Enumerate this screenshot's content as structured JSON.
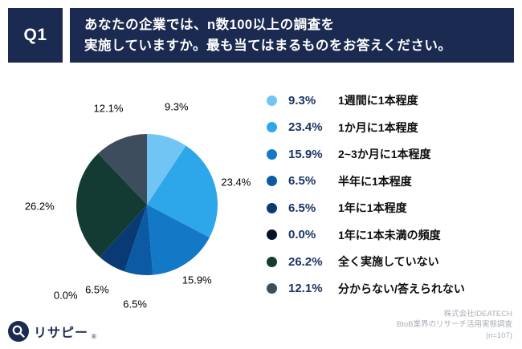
{
  "theme": {
    "navy": "#1B2A50",
    "percent": "#1C3564",
    "muted": "#A9AFB6"
  },
  "header": {
    "q_label": "Q1",
    "title_line1": "あなたの企業では、n数100以上の調査を",
    "title_line2": "実施していますか。最も当てはまるものをお答えください。"
  },
  "chart_data": {
    "type": "pie",
    "title": "Q1 あなたの企業では、n数100以上の調査を実施していますか。最も当てはまるものをお答えください。",
    "categories": [
      "1週間に1本程度",
      "1か月に1本程度",
      "2~3か月に1本程度",
      "半年に1本程度",
      "1年に1本程度",
      "1年に1本未満の頻度",
      "全く実施していない",
      "分からない/答えられない"
    ],
    "values": [
      9.3,
      23.4,
      15.9,
      6.5,
      6.5,
      0.0,
      26.2,
      12.1
    ],
    "labels": [
      "9.3%",
      "23.4%",
      "15.9%",
      "6.5%",
      "6.5%",
      "0.0%",
      "26.2%",
      "12.1%"
    ],
    "colors": [
      "#70C5F4",
      "#2EA7EA",
      "#1379C6",
      "#0C5AA4",
      "#093A74",
      "#051226",
      "#133B33",
      "#3E4D5D"
    ],
    "start_angle_deg": 0,
    "direction": "clockwise",
    "legend_position": "right"
  },
  "footer": {
    "logo_text": "リサピー",
    "logo_reg_mark": "®",
    "source_line1": "株式会社IDEATECH",
    "source_line2": "BtoB業界のリサーチ活用実態調査",
    "source_line3": "(n=107)"
  }
}
